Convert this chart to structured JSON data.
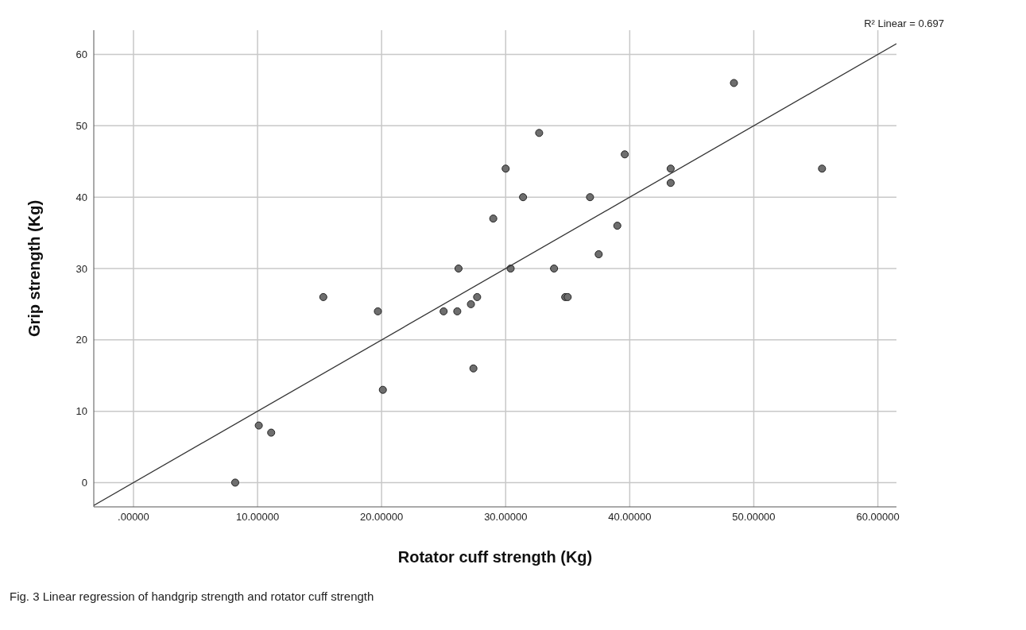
{
  "chart_data": {
    "type": "scatter",
    "xlabel": "Rotator cuff strength (Kg)",
    "ylabel": "Grip strength (Kg)",
    "annotations": [
      "R² Linear = 0.697",
      "Fig. 3 Linear regression of handgrip strength and rotator cuff strength"
    ],
    "xlim": [
      -3.2,
      61.5
    ],
    "ylim": [
      -3.4,
      63.4
    ],
    "xticks": [
      {
        "value": 0,
        "label": ".00000"
      },
      {
        "value": 10,
        "label": "10.00000"
      },
      {
        "value": 20,
        "label": "20.00000"
      },
      {
        "value": 30,
        "label": "30.00000"
      },
      {
        "value": 40,
        "label": "40.00000"
      },
      {
        "value": 50,
        "label": "50.00000"
      },
      {
        "value": 60,
        "label": "60.00000"
      }
    ],
    "yticks": [
      0,
      10,
      20,
      30,
      40,
      50,
      60
    ],
    "grid": true,
    "series": [
      {
        "marker": "circle",
        "color": "#6e6e6e",
        "x": [
          8.2,
          10.1,
          11.1,
          15.3,
          19.7,
          20.1,
          25.0,
          26.1,
          27.2,
          27.7,
          27.4,
          34.8,
          35.0,
          48.4,
          32.7,
          39.6,
          30.0,
          43.3,
          43.3,
          31.4,
          36.8,
          29.0,
          39.0,
          37.5,
          26.2,
          30.4,
          33.9,
          55.5
        ],
        "values": [
          0,
          8,
          7,
          26,
          24,
          13,
          24,
          24,
          25,
          26,
          16,
          26,
          26,
          56,
          49,
          46,
          44,
          44,
          42,
          40,
          40,
          37,
          36,
          32,
          30,
          30,
          30,
          44
        ]
      },
      {
        "type": "line",
        "marker": "none",
        "color": "#333333",
        "x": [
          -3.2,
          61.5
        ],
        "values": [
          -3.2,
          61.5
        ]
      }
    ]
  }
}
